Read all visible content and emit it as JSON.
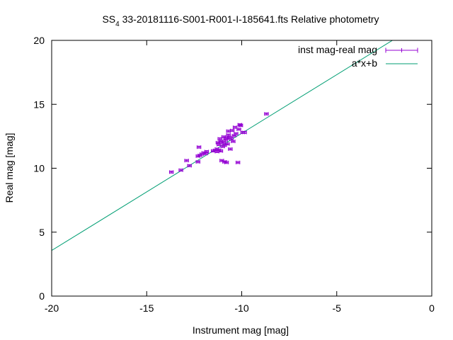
{
  "chart_data": {
    "type": "scatter",
    "title": {
      "prefix": "SS",
      "sub": "4",
      "suffix": " 33-20181116-S001-R001-I-185641.fts Relative photometry"
    },
    "xlabel": "Instrument mag [mag]",
    "ylabel": "Real mag [mag]",
    "xlim": [
      -20,
      0
    ],
    "ylim": [
      0,
      20
    ],
    "xticks": [
      -20,
      -15,
      -10,
      -5,
      0
    ],
    "yticks": [
      0,
      5,
      10,
      15,
      20
    ],
    "grid": false,
    "legend_position": "top-right",
    "colors": {
      "points": "#9400d3",
      "fit": "#009e73"
    },
    "series": [
      {
        "name": "inst mag-real mag",
        "points": [
          [
            -13.7,
            9.7
          ],
          [
            -13.2,
            9.85
          ],
          [
            -12.9,
            10.6
          ],
          [
            -12.75,
            10.2
          ],
          [
            -12.3,
            10.5
          ],
          [
            -12.3,
            10.95
          ],
          [
            -12.25,
            11.65
          ],
          [
            -12.2,
            11.0
          ],
          [
            -12.1,
            11.1
          ],
          [
            -12.0,
            11.2
          ],
          [
            -11.9,
            11.15
          ],
          [
            -11.85,
            11.3
          ],
          [
            -11.5,
            11.35
          ],
          [
            -11.4,
            11.4
          ],
          [
            -11.3,
            11.3
          ],
          [
            -11.3,
            11.5
          ],
          [
            -11.25,
            12.0
          ],
          [
            -11.2,
            11.4
          ],
          [
            -11.2,
            11.85
          ],
          [
            -11.15,
            12.3
          ],
          [
            -11.1,
            11.35
          ],
          [
            -11.1,
            12.1
          ],
          [
            -11.05,
            10.6
          ],
          [
            -11.0,
            11.7
          ],
          [
            -10.95,
            12.0
          ],
          [
            -10.95,
            12.45
          ],
          [
            -10.9,
            10.5
          ],
          [
            -10.9,
            11.8
          ],
          [
            -10.85,
            12.2
          ],
          [
            -10.8,
            10.45
          ],
          [
            -10.8,
            12.35
          ],
          [
            -10.75,
            11.9
          ],
          [
            -10.7,
            12.6
          ],
          [
            -10.7,
            12.9
          ],
          [
            -10.65,
            12.4
          ],
          [
            -10.6,
            11.5
          ],
          [
            -10.55,
            12.3
          ],
          [
            -10.5,
            12.95
          ],
          [
            -10.45,
            12.1
          ],
          [
            -10.4,
            12.55
          ],
          [
            -10.35,
            13.2
          ],
          [
            -10.3,
            12.7
          ],
          [
            -10.2,
            10.45
          ],
          [
            -10.15,
            13.05
          ],
          [
            -10.1,
            13.4
          ],
          [
            -10.05,
            13.35
          ],
          [
            -9.95,
            12.8
          ],
          [
            -9.85,
            12.8
          ],
          [
            -8.7,
            14.25
          ]
        ],
        "error_x": 0.1,
        "error_y": 0.08
      },
      {
        "name": "a*x+b",
        "type": "line",
        "slope": 0.9167,
        "intercept": 21.9
      }
    ]
  }
}
